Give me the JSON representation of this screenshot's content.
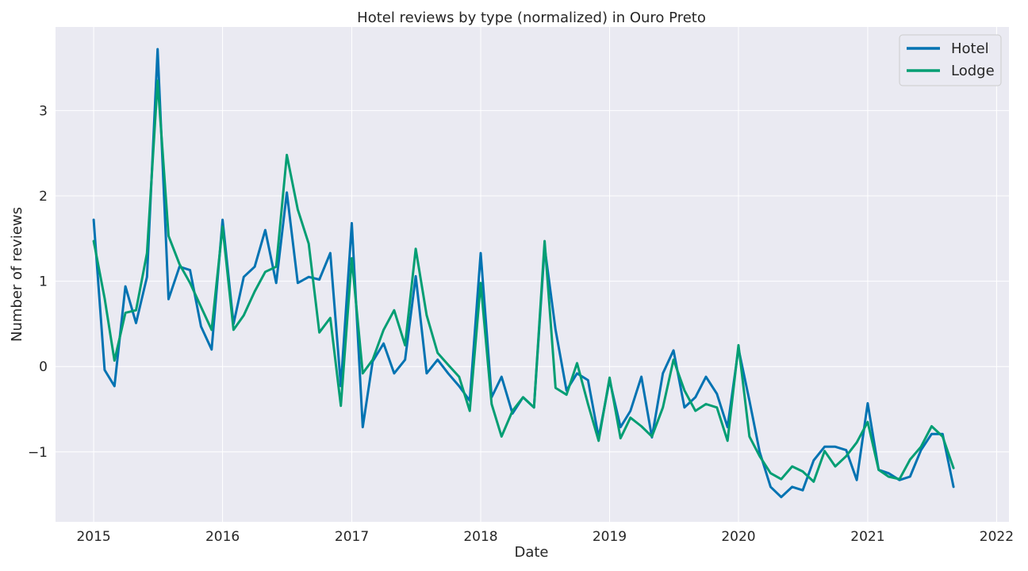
{
  "chart_data": {
    "type": "line",
    "title": "Hotel reviews by type (normalized) in Ouro Preto",
    "xlabel": "Date",
    "ylabel": "Number of reviews",
    "xlim": [
      "2014-09-15",
      "2022-02-05"
    ],
    "ylim": [
      -1.82,
      3.98
    ],
    "x_ticks": [
      "2015",
      "2016",
      "2017",
      "2018",
      "2019",
      "2020",
      "2021",
      "2022"
    ],
    "y_ticks": [
      -1,
      0,
      1,
      2,
      3
    ],
    "y_tick_labels": [
      "−1",
      "0",
      "1",
      "2",
      "3"
    ],
    "grid": true,
    "legend_position": "top-right",
    "x": [
      "2015-01",
      "2015-02",
      "2015-03",
      "2015-04",
      "2015-05",
      "2015-06",
      "2015-07",
      "2015-08",
      "2015-09",
      "2015-10",
      "2015-11",
      "2015-12",
      "2016-01",
      "2016-02",
      "2016-03",
      "2016-04",
      "2016-05",
      "2016-06",
      "2016-07",
      "2016-08",
      "2016-09",
      "2016-10",
      "2016-11",
      "2016-12",
      "2017-01",
      "2017-02",
      "2017-03",
      "2017-04",
      "2017-05",
      "2017-06",
      "2017-07",
      "2017-08",
      "2017-09",
      "2017-10",
      "2017-11",
      "2017-12",
      "2018-01",
      "2018-02",
      "2018-03",
      "2018-04",
      "2018-05",
      "2018-06",
      "2018-07",
      "2018-08",
      "2018-09",
      "2018-10",
      "2018-11",
      "2018-12",
      "2019-01",
      "2019-02",
      "2019-03",
      "2019-04",
      "2019-05",
      "2019-06",
      "2019-07",
      "2019-08",
      "2019-09",
      "2019-10",
      "2019-11",
      "2019-12",
      "2020-01",
      "2020-02",
      "2020-03",
      "2020-04",
      "2020-05",
      "2020-06",
      "2020-07",
      "2020-08",
      "2020-09",
      "2020-10",
      "2020-11",
      "2020-12",
      "2021-01",
      "2021-02",
      "2021-03",
      "2021-04",
      "2021-05",
      "2021-06",
      "2021-07",
      "2021-08",
      "2021-09"
    ],
    "series": [
      {
        "name": "Hotel",
        "color": "#0173b2",
        "values": [
          1.72,
          -0.04,
          -0.23,
          0.94,
          0.51,
          1.05,
          3.72,
          0.79,
          1.17,
          1.13,
          0.47,
          0.2,
          1.72,
          0.5,
          1.05,
          1.17,
          1.6,
          0.98,
          2.04,
          0.98,
          1.05,
          1.02,
          1.33,
          -0.23,
          1.68,
          -0.71,
          0.06,
          0.27,
          -0.08,
          0.08,
          1.06,
          -0.08,
          0.08,
          -0.08,
          -0.23,
          -0.4,
          1.33,
          -0.36,
          -0.12,
          -0.55,
          -0.36,
          -0.48,
          1.4,
          0.43,
          -0.28,
          -0.08,
          -0.16,
          -0.83,
          -0.16,
          -0.71,
          -0.52,
          -0.12,
          -0.83,
          -0.08,
          0.19,
          -0.48,
          -0.36,
          -0.12,
          -0.32,
          -0.71,
          0.21,
          -0.4,
          -1.0,
          -1.41,
          -1.53,
          -1.41,
          -1.45,
          -1.1,
          -0.94,
          -0.94,
          -0.98,
          -1.33,
          -0.43,
          -1.21,
          -1.25,
          -1.33,
          -1.29,
          -0.98,
          -0.79,
          -0.79,
          -1.41
        ]
      },
      {
        "name": "Lodge",
        "color": "#029e73",
        "values": [
          1.47,
          0.8,
          0.07,
          0.63,
          0.66,
          1.33,
          3.35,
          1.53,
          1.2,
          0.98,
          0.7,
          0.43,
          1.64,
          0.43,
          0.6,
          0.88,
          1.11,
          1.17,
          2.48,
          1.84,
          1.44,
          0.4,
          0.57,
          -0.46,
          1.27,
          -0.08,
          0.08,
          0.43,
          0.66,
          0.25,
          1.38,
          0.6,
          0.16,
          0.02,
          -0.12,
          -0.52,
          0.98,
          -0.44,
          -0.82,
          -0.52,
          -0.36,
          -0.48,
          1.47,
          -0.25,
          -0.33,
          0.04,
          -0.44,
          -0.87,
          -0.13,
          -0.84,
          -0.6,
          -0.7,
          -0.82,
          -0.48,
          0.08,
          -0.28,
          -0.52,
          -0.44,
          -0.48,
          -0.87,
          0.25,
          -0.82,
          -1.05,
          -1.25,
          -1.32,
          -1.17,
          -1.23,
          -1.35,
          -0.99,
          -1.17,
          -1.05,
          -0.89,
          -0.65,
          -1.21,
          -1.29,
          -1.32,
          -1.09,
          -0.94,
          -0.7,
          -0.82,
          -1.19
        ]
      }
    ]
  }
}
